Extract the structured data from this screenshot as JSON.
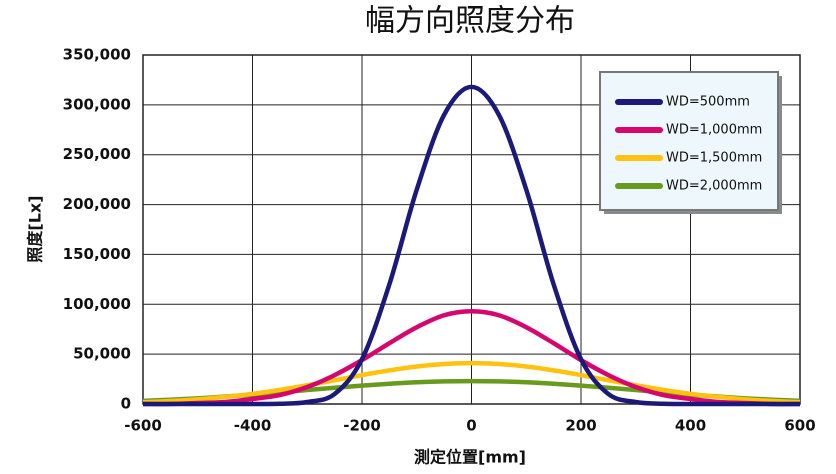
{
  "chart_data": {
    "type": "line",
    "title": "幅方向照度分布",
    "x_label": "測定位置[mm]",
    "y_label": "照度[Lx]",
    "x": [
      -600,
      -550,
      -500,
      -450,
      -400,
      -350,
      -300,
      -250,
      -200,
      -150,
      -100,
      -50,
      0,
      50,
      100,
      150,
      200,
      250,
      300,
      350,
      400,
      450,
      500,
      550,
      600
    ],
    "series": [
      {
        "name": "WD=500mm",
        "color": "#1c1a78",
        "values": [
          0,
          0,
          0,
          0,
          0,
          200,
          2000,
          10000,
          45000,
          120000,
          215000,
          290000,
          318000,
          290000,
          215000,
          120000,
          45000,
          10000,
          2000,
          200,
          0,
          0,
          0,
          0,
          0
        ]
      },
      {
        "name": "WD=1,000mm",
        "color": "#d5076f",
        "values": [
          0,
          0,
          1000,
          2000,
          5000,
          9000,
          17000,
          29000,
          44000,
          61000,
          77000,
          89000,
          93000,
          89000,
          77000,
          61000,
          44000,
          29000,
          17000,
          9000,
          5000,
          2000,
          1000,
          0,
          0
        ]
      },
      {
        "name": "WD=1,500mm",
        "color": "#ffc20e",
        "values": [
          1800,
          3000,
          4700,
          7100,
          10200,
          14200,
          18800,
          23800,
          29000,
          33700,
          37600,
          40100,
          41000,
          40100,
          37600,
          33700,
          29000,
          23800,
          18800,
          14200,
          10200,
          7100,
          4700,
          3000,
          1800
        ]
      },
      {
        "name": "WD=2,000mm",
        "color": "#689a1e",
        "values": [
          3100,
          4300,
          5700,
          7500,
          9400,
          11600,
          14000,
          16300,
          18400,
          20300,
          21800,
          22700,
          23000,
          22700,
          21800,
          20300,
          18400,
          16300,
          14000,
          11600,
          9400,
          7500,
          5700,
          4300,
          3100
        ]
      }
    ],
    "xlim": [
      -600,
      600
    ],
    "xticks": [
      -600,
      -400,
      -200,
      0,
      200,
      400,
      600
    ],
    "ylim": [
      0,
      350000
    ],
    "yticks": [
      0,
      {
        "value": 50000,
        "label": "50,000"
      },
      {
        "value": 100000,
        "label": "100,000"
      },
      {
        "value": 150000,
        "label": "150,000"
      },
      {
        "value": 200000,
        "label": "200,000"
      },
      {
        "value": 250000,
        "label": "250,000"
      },
      {
        "value": 300000,
        "label": "300,000"
      },
      {
        "value": 350000,
        "label": "350,000"
      }
    ],
    "grid": true,
    "legend": "upper right"
  }
}
